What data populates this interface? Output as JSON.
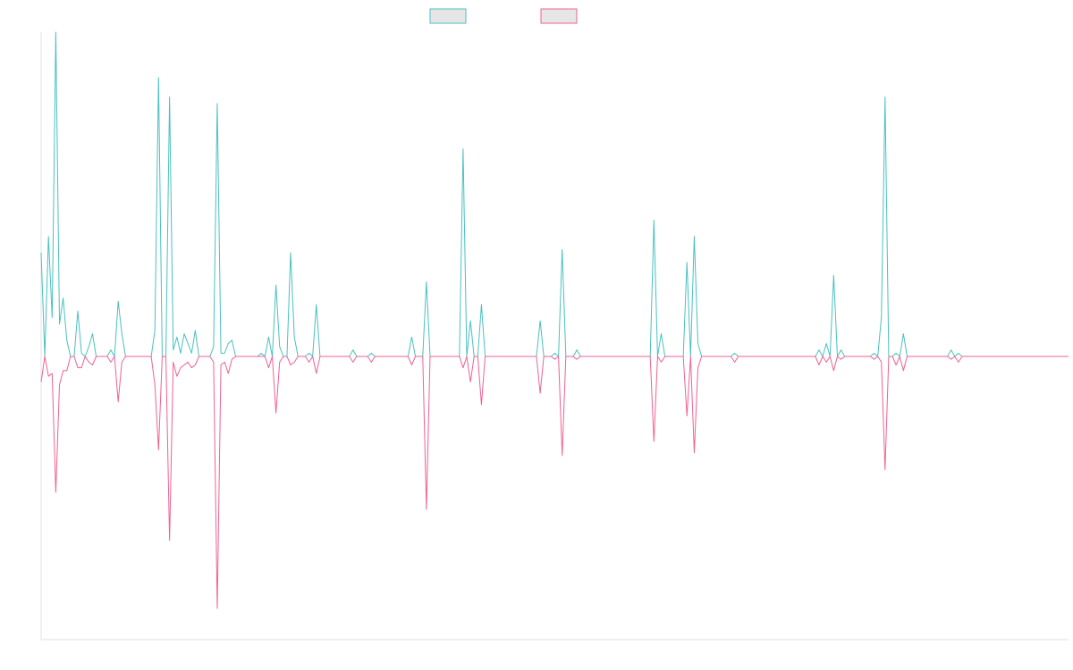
{
  "chart_data": {
    "type": "line",
    "title": "",
    "xlabel": "",
    "ylabel": "",
    "ylim": [
      -1,
      1
    ],
    "grid": false,
    "legend_position": "top-center",
    "colors": {
      "series_positive": "#4bc0c0",
      "series_negative": "#f06292",
      "legend_fill": "#e6e6e6",
      "axis": "#e0e0e0"
    },
    "series": [
      {
        "name": "",
        "values": [
          0.32,
          0,
          0.37,
          0.12,
          1.0,
          0.1,
          0.18,
          0.05,
          0,
          0,
          0.14,
          0.01,
          0,
          0.03,
          0.07,
          0,
          0,
          0,
          0,
          0.02,
          0,
          0.17,
          0.07,
          0,
          0,
          0,
          0,
          0,
          0,
          0,
          0,
          0.08,
          0.86,
          0,
          0,
          0.8,
          0.02,
          0.06,
          0.01,
          0.07,
          0.04,
          0.01,
          0.08,
          0,
          0,
          0,
          0,
          0.03,
          0.78,
          0.01,
          0.01,
          0.04,
          0.05,
          0,
          0,
          0,
          0,
          0,
          0,
          0,
          0.01,
          0,
          0.06,
          0,
          0.22,
          0.03,
          0,
          0,
          0.32,
          0.06,
          0,
          0,
          0,
          0.01,
          0,
          0.16,
          0,
          0,
          0,
          0,
          0,
          0,
          0,
          0,
          0,
          0.02,
          0,
          0,
          0,
          0,
          0.01,
          0,
          0,
          0,
          0,
          0,
          0,
          0,
          0,
          0,
          0,
          0.06,
          0,
          0,
          0,
          0.23,
          0,
          0,
          0,
          0,
          0,
          0,
          0,
          0,
          0,
          0.64,
          0,
          0.11,
          0,
          0,
          0.16,
          0,
          0,
          0,
          0,
          0,
          0,
          0,
          0,
          0,
          0,
          0,
          0,
          0,
          0,
          0,
          0.11,
          0,
          0,
          0,
          0.01,
          0,
          0.33,
          0,
          0,
          0,
          0.02,
          0,
          0,
          0,
          0,
          0,
          0,
          0,
          0,
          0,
          0,
          0,
          0,
          0,
          0,
          0,
          0,
          0,
          0,
          0,
          0,
          0.42,
          0,
          0.07,
          0,
          0,
          0,
          0,
          0,
          0,
          0.29,
          0,
          0.37,
          0.04,
          0,
          0,
          0,
          0,
          0,
          0,
          0,
          0,
          0,
          0.01,
          0,
          0,
          0,
          0,
          0,
          0,
          0,
          0,
          0,
          0,
          0,
          0,
          0,
          0,
          0,
          0,
          0,
          0,
          0,
          0,
          0,
          0,
          0.02,
          0,
          0.04,
          0,
          0.25,
          0,
          0.02,
          0,
          0,
          0,
          0,
          0,
          0,
          0,
          0,
          0.01,
          0,
          0.12,
          0.8,
          0,
          0,
          0.01,
          0,
          0.07,
          0,
          0,
          0,
          0,
          0,
          0,
          0,
          0,
          0,
          0,
          0,
          0,
          0.02,
          0,
          0.01,
          0,
          0,
          0,
          0,
          0,
          0,
          0,
          0,
          0,
          0,
          0,
          0,
          0,
          0,
          0,
          0,
          0,
          0,
          0,
          0,
          0,
          0,
          0,
          0,
          0,
          0,
          0,
          0,
          0,
          0
        ]
      },
      {
        "name": "",
        "values": [
          -0.09,
          0,
          -0.07,
          -0.06,
          -0.48,
          -0.1,
          -0.05,
          -0.05,
          0,
          0,
          -0.04,
          -0.04,
          0,
          -0.02,
          -0.03,
          0,
          0,
          0,
          0,
          -0.02,
          0,
          -0.16,
          -0.02,
          0,
          0,
          0,
          0,
          0,
          0,
          0,
          0,
          -0.1,
          -0.33,
          0,
          0,
          -0.65,
          -0.02,
          -0.07,
          -0.04,
          -0.03,
          -0.02,
          -0.04,
          -0.03,
          0,
          0,
          0,
          0,
          -0.02,
          -0.89,
          -0.03,
          -0.02,
          -0.06,
          -0.01,
          0,
          0,
          0,
          0,
          0,
          0,
          0,
          0,
          0,
          -0.04,
          0,
          -0.2,
          -0.02,
          0,
          0,
          -0.03,
          -0.02,
          0,
          0,
          0,
          -0.02,
          0,
          -0.06,
          0,
          0,
          0,
          0,
          0,
          0,
          0,
          0,
          0,
          -0.02,
          0,
          0,
          0,
          0,
          -0.02,
          0,
          0,
          0,
          0,
          0,
          0,
          0,
          0,
          0,
          0,
          -0.03,
          0,
          0,
          0,
          -0.54,
          0,
          0,
          0,
          0,
          0,
          0,
          0,
          0,
          0,
          -0.04,
          0,
          -0.09,
          0,
          0,
          -0.17,
          0,
          0,
          0,
          0,
          0,
          0,
          0,
          0,
          0,
          0,
          0,
          0,
          0,
          0,
          0,
          -0.13,
          0,
          0,
          0,
          -0.01,
          0,
          -0.35,
          0,
          0,
          0,
          -0.01,
          0,
          0,
          0,
          0,
          0,
          0,
          0,
          0,
          0,
          0,
          0,
          0,
          0,
          0,
          0,
          0,
          0,
          0,
          0,
          0,
          -0.3,
          0,
          -0.02,
          0,
          0,
          0,
          0,
          0,
          0,
          -0.21,
          0,
          -0.34,
          -0.04,
          0,
          0,
          0,
          0,
          0,
          0,
          0,
          0,
          0,
          -0.02,
          0,
          0,
          0,
          0,
          0,
          0,
          0,
          0,
          0,
          0,
          0,
          0,
          0,
          0,
          0,
          0,
          0,
          0,
          0,
          0,
          0,
          0,
          -0.03,
          0,
          -0.02,
          0,
          -0.05,
          0,
          -0.01,
          0,
          0,
          0,
          0,
          0,
          0,
          0,
          0,
          -0.01,
          0,
          -0.02,
          -0.4,
          0,
          0,
          -0.03,
          0,
          -0.05,
          0,
          0,
          0,
          0,
          0,
          0,
          0,
          0,
          0,
          0,
          0,
          0,
          -0.01,
          0,
          -0.02,
          0,
          0,
          0,
          0,
          0,
          0,
          0,
          0,
          0,
          0,
          0,
          0,
          0,
          0,
          0,
          0,
          0,
          0,
          0,
          0,
          0,
          0,
          0,
          0,
          0,
          0,
          0,
          0,
          0,
          0
        ]
      }
    ]
  }
}
